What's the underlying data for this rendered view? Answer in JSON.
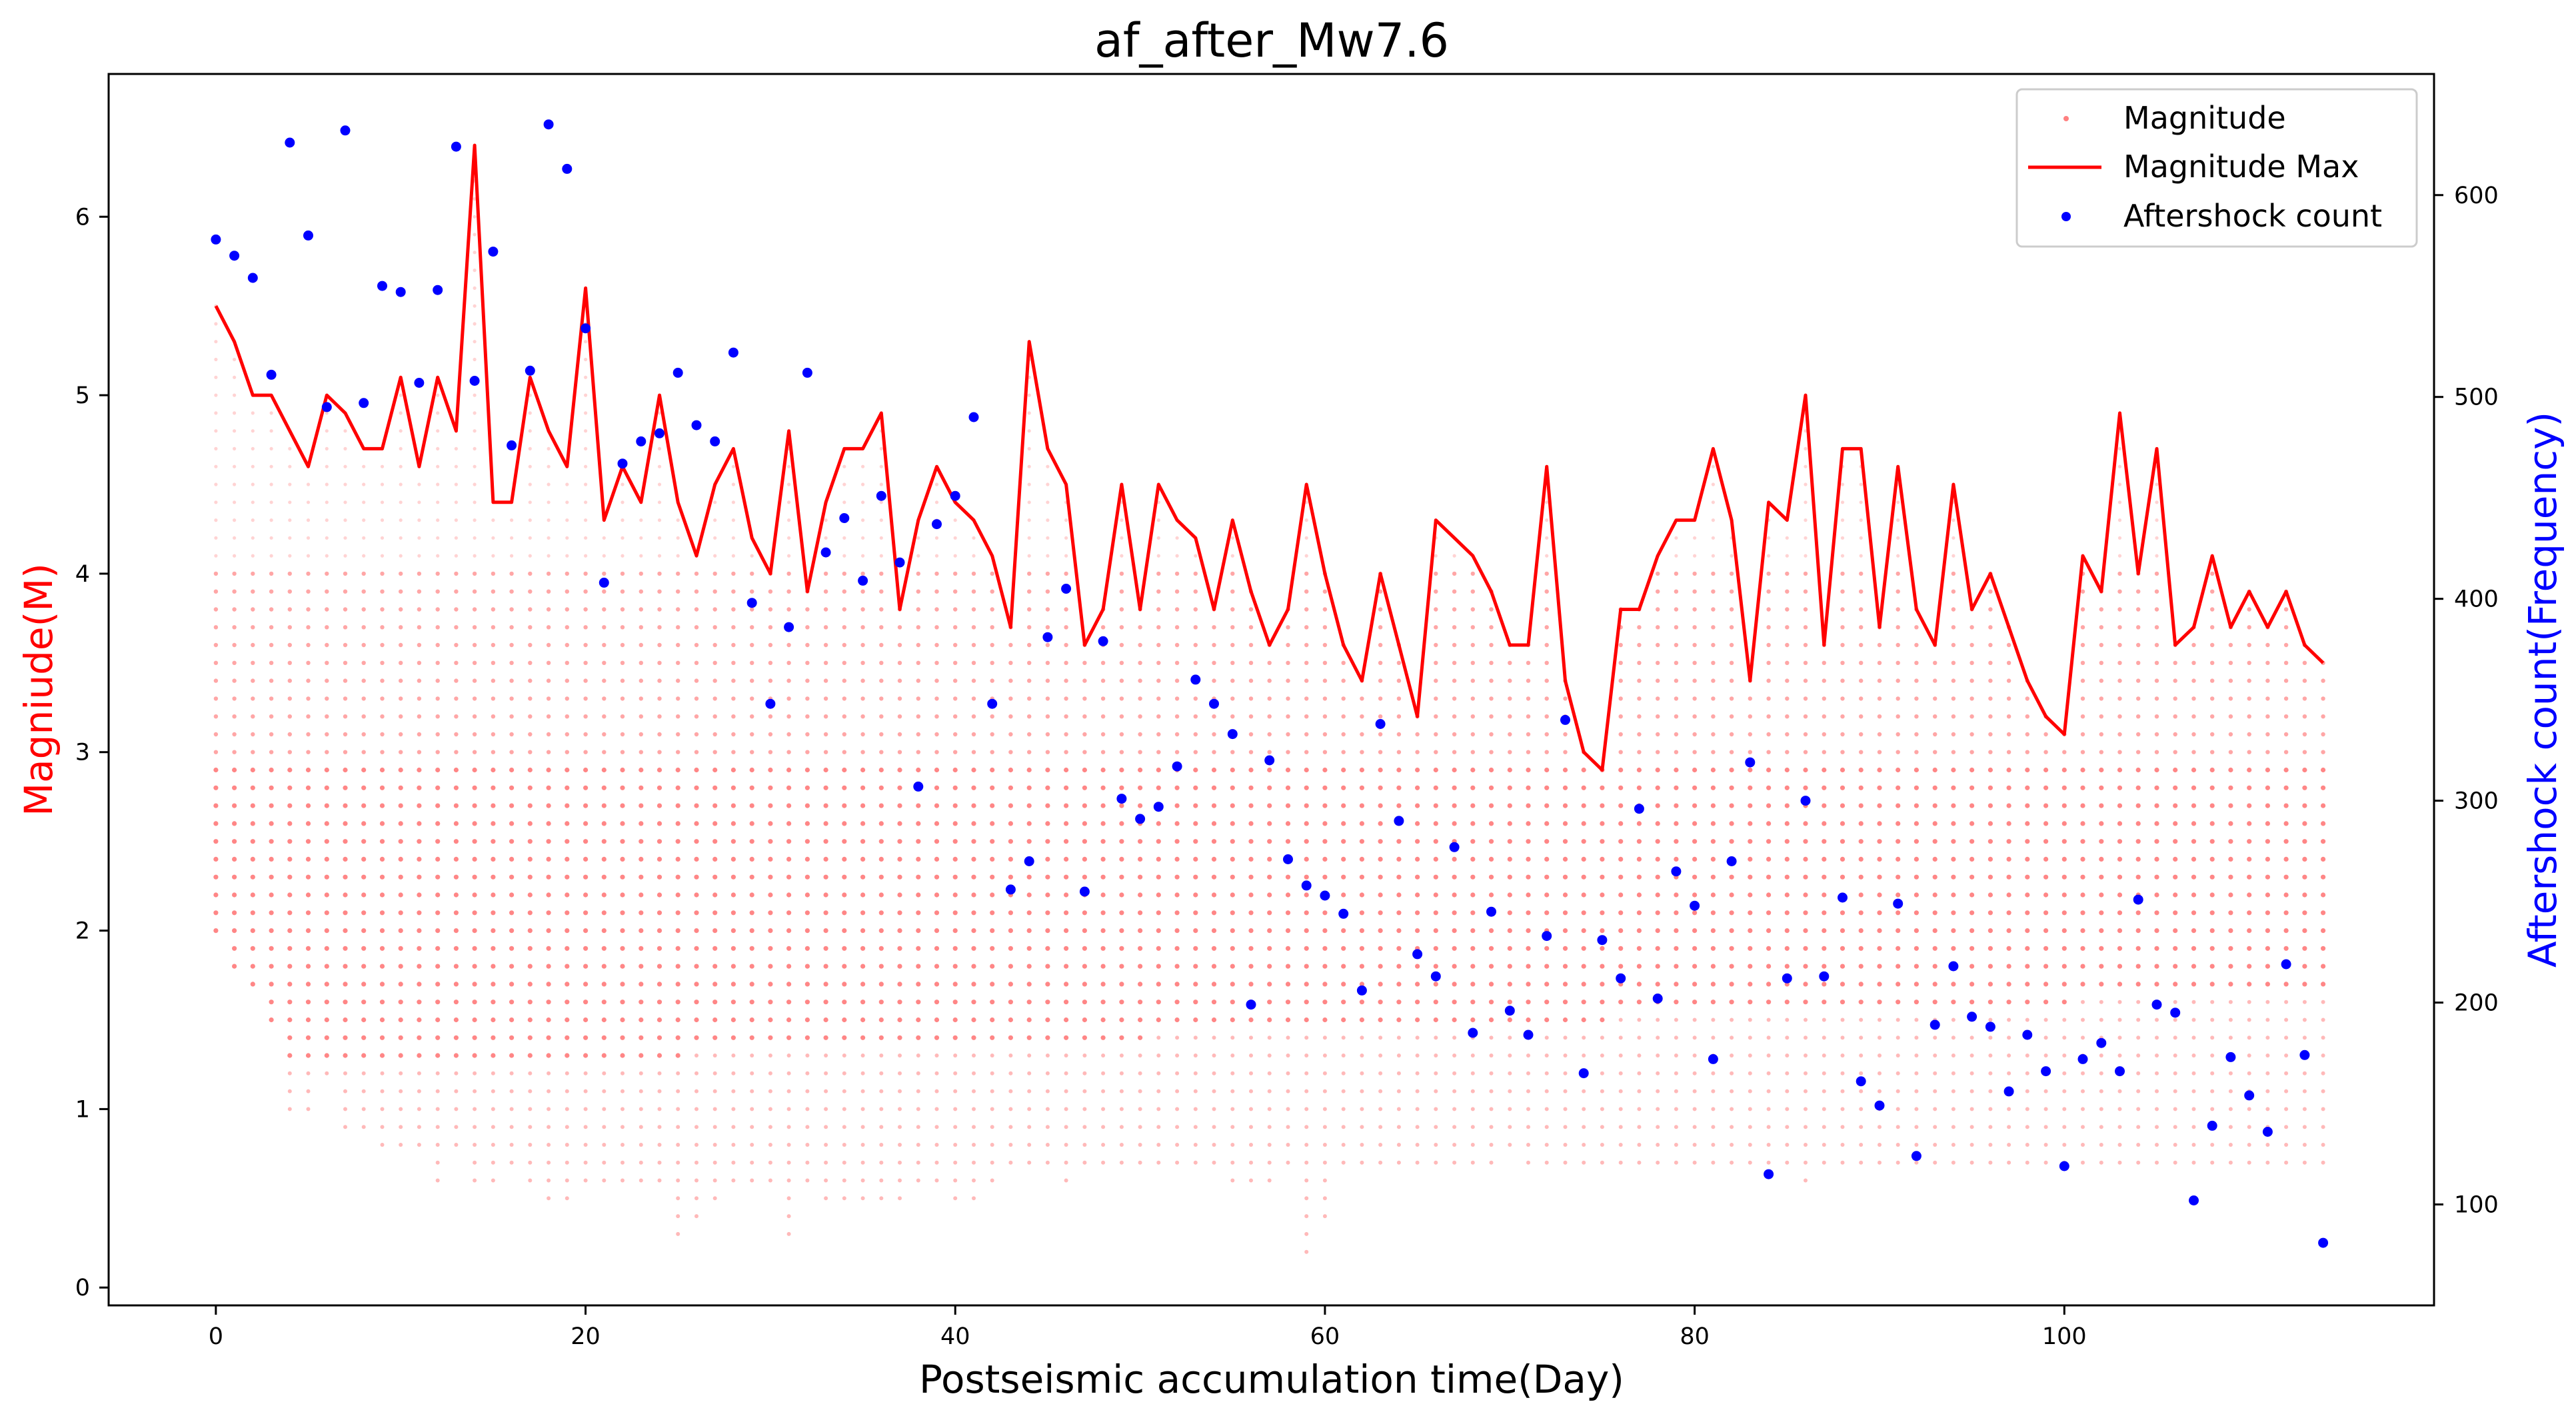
{
  "chart_data": {
    "type": "scatter",
    "title": "af_after_Mw7.6",
    "xlabel": "Postseismic accumulation time(Day)",
    "ylabel_left": "Magniude(M)",
    "ylabel_right": "Aftershock count(Frequency)",
    "xlim": [
      -5.8,
      120
    ],
    "ylim_left": [
      -0.1,
      6.8
    ],
    "ylim_right": [
      50,
      660
    ],
    "xticks": [
      0,
      20,
      40,
      60,
      80,
      100
    ],
    "yticks_left": [
      0,
      1,
      2,
      3,
      4,
      5,
      6
    ],
    "yticks_right": [
      100,
      200,
      300,
      400,
      500,
      600
    ],
    "grid": false,
    "legend_position": "top-right",
    "colors": {
      "magnitude": "#ff8080",
      "magnitude_max": "#ff0000",
      "aftershock_count": "#0000ff",
      "left_axis_label": "#ff0000",
      "right_axis_label": "#0000ff"
    },
    "series": [
      {
        "name": "Magnitude",
        "kind": "scatter",
        "note_binning": "per-day magnitude distribution in 0.1 M bins from min_m to the day's max",
        "min_m": [
          2.0,
          1.8,
          1.7,
          1.5,
          1.0,
          1.0,
          1.2,
          0.9,
          0.9,
          0.8,
          0.8,
          0.8,
          0.6,
          0.8,
          0.6,
          0.6,
          0.7,
          0.6,
          0.5,
          0.5,
          0.6,
          0.6,
          0.6,
          0.6,
          0.6,
          0.3,
          0.4,
          0.5,
          0.6,
          0.6,
          0.6,
          0.3,
          0.6,
          0.5,
          0.5,
          0.5,
          0.5,
          0.5,
          0.6,
          0.6,
          0.5,
          0.5,
          0.6,
          0.7,
          0.7,
          0.7,
          0.6,
          0.7,
          0.7,
          0.7,
          0.7,
          0.7,
          0.7,
          0.7,
          0.7,
          0.6,
          0.6,
          0.6,
          0.7,
          0.2,
          0.4,
          0.7,
          0.7,
          0.7,
          0.7,
          0.7,
          0.7,
          0.7,
          0.7,
          0.7,
          0.8,
          0.7,
          0.7,
          0.7,
          0.7,
          0.7,
          0.7,
          0.7,
          0.7,
          0.7,
          0.7,
          0.7,
          0.7,
          0.7,
          0.7,
          0.7,
          0.6,
          0.7,
          0.7,
          0.7,
          0.7,
          0.7,
          0.7,
          0.7,
          0.7,
          0.7,
          0.7,
          0.7,
          0.7,
          0.7,
          0.7,
          0.7,
          0.7,
          0.7,
          0.7,
          0.7,
          0.7,
          0.7,
          0.7,
          0.7,
          0.7,
          0.7,
          0.7,
          0.7,
          0.7
        ]
      },
      {
        "name": "Magnitude Max",
        "kind": "line",
        "x_start": 0,
        "x_step": 1,
        "values": [
          5.5,
          5.3,
          5.0,
          5.0,
          4.8,
          4.6,
          5.0,
          4.9,
          4.7,
          4.7,
          5.1,
          4.6,
          5.1,
          4.8,
          6.4,
          4.4,
          4.4,
          5.1,
          4.8,
          4.6,
          5.6,
          4.3,
          4.6,
          4.4,
          5.0,
          4.4,
          4.1,
          4.5,
          4.7,
          4.2,
          4.0,
          4.8,
          3.9,
          4.4,
          4.7,
          4.7,
          4.9,
          3.8,
          4.3,
          4.6,
          4.4,
          4.3,
          4.1,
          3.7,
          5.3,
          4.7,
          4.5,
          3.6,
          3.8,
          4.5,
          3.8,
          4.5,
          4.3,
          4.2,
          3.8,
          4.3,
          3.9,
          3.6,
          3.8,
          4.5,
          4.0,
          3.6,
          3.4,
          4.0,
          3.6,
          3.2,
          4.3,
          4.2,
          4.1,
          3.9,
          3.6,
          3.6,
          4.6,
          3.4,
          3.0,
          2.9,
          3.8,
          3.8,
          4.1,
          4.3,
          4.3,
          4.7,
          4.3,
          3.4,
          4.4,
          4.3,
          5.0,
          3.6,
          4.7,
          4.7,
          3.7,
          4.6,
          3.8,
          3.6,
          4.5,
          3.8,
          4.0,
          3.7,
          3.4,
          3.2,
          3.1,
          4.1,
          3.9,
          4.9,
          4.0,
          4.7,
          3.6,
          3.7,
          4.1,
          3.7,
          3.9,
          3.7,
          3.9,
          3.6,
          3.5
        ]
      },
      {
        "name": "Aftershock count",
        "kind": "scatter",
        "x_start": 0,
        "x_step": 1,
        "values": [
          578,
          570,
          559,
          511,
          626,
          580,
          495,
          632,
          497,
          555,
          552,
          507,
          553,
          624,
          508,
          572,
          476,
          513,
          635,
          613,
          534,
          408,
          467,
          478,
          482,
          512,
          486,
          478,
          522,
          398,
          348,
          386,
          512,
          423,
          440,
          409,
          451,
          418,
          307,
          437,
          451,
          490,
          348,
          256,
          270,
          381,
          405,
          255,
          379,
          301,
          291,
          297,
          317,
          360,
          348,
          333,
          199,
          320,
          271,
          258,
          253,
          244,
          206,
          338,
          290,
          224,
          213,
          277,
          185,
          245,
          196,
          184,
          233,
          340,
          165,
          231,
          212,
          296,
          202,
          265,
          248,
          172,
          270,
          319,
          115,
          212,
          300,
          213,
          252,
          161,
          149,
          249,
          124,
          189,
          218,
          193,
          188,
          156,
          184,
          166,
          119,
          172,
          180,
          166,
          251,
          199,
          195,
          102,
          139,
          173,
          154,
          136,
          219,
          174,
          81
        ]
      }
    ]
  }
}
